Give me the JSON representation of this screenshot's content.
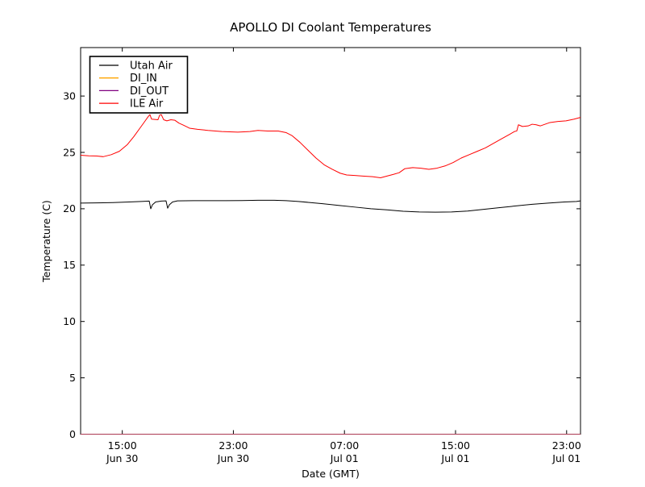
{
  "window": {
    "background": "#ffffff"
  },
  "chart_data": {
    "type": "line",
    "title": "APOLLO DI Coolant Temperatures",
    "xlabel": "Date (GMT)",
    "ylabel": "Temperature (C)",
    "grid": false,
    "legend": {
      "position": "upper-left"
    },
    "x_axis": {
      "unit": "hours_since_Jun30_12:00_GMT",
      "range_hours": [
        0,
        36
      ],
      "ticks": [
        {
          "hours": 3,
          "time": "15:00",
          "date": "Jun 30"
        },
        {
          "hours": 11,
          "time": "23:00",
          "date": "Jun 30"
        },
        {
          "hours": 19,
          "time": "07:00",
          "date": "Jul 01"
        },
        {
          "hours": 27,
          "time": "15:00",
          "date": "Jul 01"
        },
        {
          "hours": 35,
          "time": "23:00",
          "date": "Jul 01"
        }
      ]
    },
    "y_axis": {
      "range": [
        0,
        34.3
      ],
      "ticks": [
        0,
        5,
        10,
        15,
        20,
        25,
        30
      ]
    },
    "series": [
      {
        "name": "Utah Air",
        "color": "#000000",
        "points": [
          [
            0.0,
            20.5
          ],
          [
            1.16,
            20.52
          ],
          [
            2.32,
            20.55
          ],
          [
            3.48,
            20.6
          ],
          [
            4.36,
            20.65
          ],
          [
            4.94,
            20.68
          ],
          [
            5.05,
            20.0
          ],
          [
            5.17,
            20.35
          ],
          [
            5.4,
            20.6
          ],
          [
            5.81,
            20.68
          ],
          [
            6.15,
            20.7
          ],
          [
            6.27,
            20.05
          ],
          [
            6.39,
            20.35
          ],
          [
            6.62,
            20.6
          ],
          [
            6.97,
            20.7
          ],
          [
            8.13,
            20.72
          ],
          [
            9.29,
            20.72
          ],
          [
            10.45,
            20.72
          ],
          [
            11.61,
            20.73
          ],
          [
            12.77,
            20.75
          ],
          [
            13.94,
            20.75
          ],
          [
            14.81,
            20.72
          ],
          [
            15.68,
            20.65
          ],
          [
            16.55,
            20.55
          ],
          [
            17.42,
            20.45
          ],
          [
            18.58,
            20.3
          ],
          [
            19.74,
            20.15
          ],
          [
            20.9,
            20.0
          ],
          [
            22.06,
            19.9
          ],
          [
            23.23,
            19.78
          ],
          [
            24.39,
            19.72
          ],
          [
            25.55,
            19.7
          ],
          [
            26.71,
            19.72
          ],
          [
            27.87,
            19.8
          ],
          [
            29.03,
            19.95
          ],
          [
            30.19,
            20.1
          ],
          [
            31.35,
            20.25
          ],
          [
            32.52,
            20.4
          ],
          [
            33.68,
            20.5
          ],
          [
            34.84,
            20.6
          ],
          [
            35.71,
            20.65
          ],
          [
            36.0,
            20.7
          ]
        ]
      },
      {
        "name": "DI_IN",
        "color": "#ffa500",
        "points": [
          [
            0,
            0
          ],
          [
            36,
            0
          ]
        ]
      },
      {
        "name": "DI_OUT",
        "color": "#800080",
        "points": [
          [
            0,
            0
          ],
          [
            36,
            0
          ]
        ]
      },
      {
        "name": "ILE Air",
        "color": "#ff0000",
        "points": [
          [
            0.0,
            24.75
          ],
          [
            0.58,
            24.7
          ],
          [
            1.16,
            24.68
          ],
          [
            1.63,
            24.62
          ],
          [
            2.21,
            24.8
          ],
          [
            2.79,
            25.1
          ],
          [
            3.37,
            25.7
          ],
          [
            3.83,
            26.4
          ],
          [
            4.3,
            27.2
          ],
          [
            4.65,
            27.8
          ],
          [
            4.88,
            28.2
          ],
          [
            4.99,
            28.35
          ],
          [
            5.11,
            27.95
          ],
          [
            5.57,
            27.9
          ],
          [
            5.69,
            28.3
          ],
          [
            5.81,
            28.35
          ],
          [
            5.98,
            27.9
          ],
          [
            6.21,
            27.8
          ],
          [
            6.5,
            27.9
          ],
          [
            6.79,
            27.85
          ],
          [
            7.08,
            27.6
          ],
          [
            7.43,
            27.4
          ],
          [
            7.84,
            27.15
          ],
          [
            8.42,
            27.05
          ],
          [
            9.17,
            26.95
          ],
          [
            10.16,
            26.85
          ],
          [
            11.32,
            26.8
          ],
          [
            12.19,
            26.85
          ],
          [
            12.77,
            26.95
          ],
          [
            13.47,
            26.9
          ],
          [
            14.23,
            26.9
          ],
          [
            14.81,
            26.75
          ],
          [
            15.21,
            26.5
          ],
          [
            15.79,
            25.9
          ],
          [
            16.37,
            25.2
          ],
          [
            16.95,
            24.5
          ],
          [
            17.54,
            23.9
          ],
          [
            18.12,
            23.5
          ],
          [
            18.7,
            23.15
          ],
          [
            19.16,
            23.0
          ],
          [
            19.74,
            22.95
          ],
          [
            20.32,
            22.9
          ],
          [
            21.02,
            22.85
          ],
          [
            21.6,
            22.75
          ],
          [
            22.06,
            22.9
          ],
          [
            22.53,
            23.05
          ],
          [
            22.94,
            23.2
          ],
          [
            23.34,
            23.55
          ],
          [
            23.92,
            23.65
          ],
          [
            24.5,
            23.6
          ],
          [
            25.08,
            23.5
          ],
          [
            25.66,
            23.6
          ],
          [
            26.25,
            23.8
          ],
          [
            26.83,
            24.1
          ],
          [
            27.41,
            24.5
          ],
          [
            27.99,
            24.8
          ],
          [
            28.57,
            25.1
          ],
          [
            29.15,
            25.4
          ],
          [
            29.73,
            25.8
          ],
          [
            30.31,
            26.2
          ],
          [
            30.89,
            26.6
          ],
          [
            31.24,
            26.85
          ],
          [
            31.41,
            26.9
          ],
          [
            31.53,
            27.45
          ],
          [
            31.82,
            27.3
          ],
          [
            32.23,
            27.35
          ],
          [
            32.52,
            27.5
          ],
          [
            32.81,
            27.45
          ],
          [
            33.1,
            27.35
          ],
          [
            33.45,
            27.5
          ],
          [
            33.8,
            27.65
          ],
          [
            34.38,
            27.75
          ],
          [
            34.96,
            27.8
          ],
          [
            35.54,
            27.95
          ],
          [
            36.0,
            28.1
          ]
        ]
      }
    ]
  }
}
